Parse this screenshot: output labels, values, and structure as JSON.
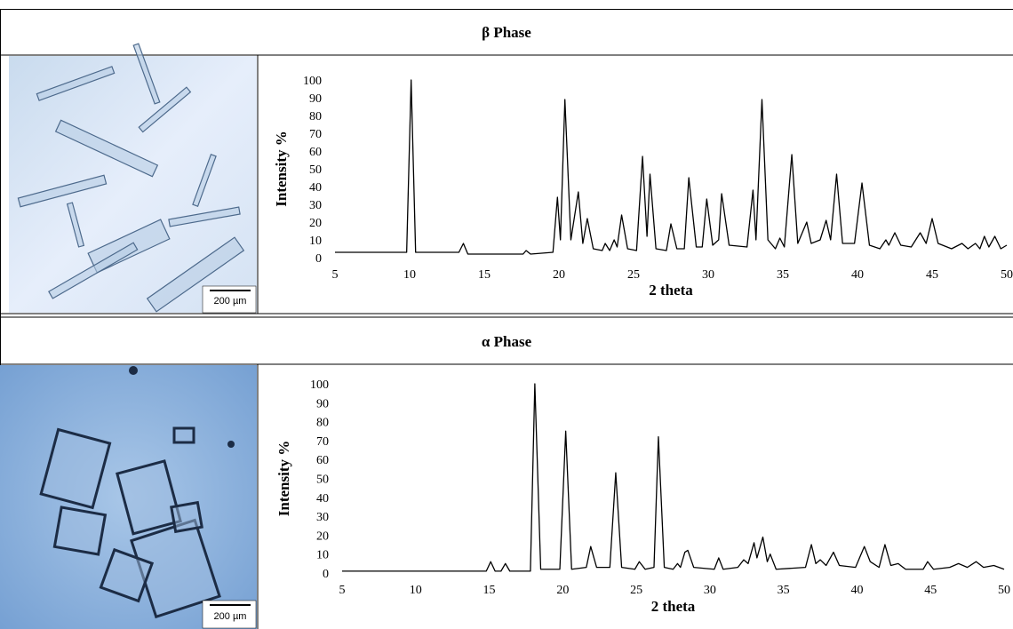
{
  "chart_data": [
    {
      "type": "line",
      "title": "β Phase",
      "xlabel": "2 theta",
      "ylabel": "Intensity %",
      "color": "#000000",
      "xlim": [
        5,
        50
      ],
      "ylim": [
        0,
        100
      ],
      "xticks": [
        5,
        10,
        15,
        20,
        25,
        30,
        35,
        40,
        45,
        50
      ],
      "yticks": [
        0,
        10,
        20,
        30,
        40,
        50,
        60,
        70,
        80,
        90,
        100
      ],
      "x": [
        5,
        9.8,
        10.1,
        10.4,
        13.3,
        13.6,
        13.9,
        17.6,
        17.8,
        18.1,
        19.6,
        19.9,
        20.1,
        20.4,
        20.8,
        21.3,
        21.6,
        21.9,
        22.3,
        22.9,
        23.1,
        23.4,
        23.7,
        23.9,
        24.2,
        24.6,
        25.2,
        25.6,
        25.9,
        26.1,
        26.5,
        27.2,
        27.5,
        27.9,
        28.4,
        28.7,
        29.2,
        29.6,
        29.9,
        30.3,
        30.7,
        30.9,
        31.4,
        32.6,
        33.0,
        33.2,
        33.6,
        34.0,
        34.5,
        34.8,
        35.1,
        35.6,
        36.0,
        36.6,
        36.9,
        37.5,
        37.9,
        38.2,
        38.6,
        39.0,
        39.8,
        40.3,
        40.8,
        41.5,
        41.9,
        42.1,
        42.5,
        42.9,
        43.6,
        44.2,
        44.6,
        45.0,
        45.4,
        46.3,
        47.0,
        47.4,
        47.9,
        48.2,
        48.5,
        48.8,
        49.2,
        49.6,
        50
      ],
      "values": [
        3,
        3,
        100,
        3,
        3,
        8,
        2,
        2,
        4,
        2,
        3,
        34,
        10,
        89,
        10,
        37,
        8,
        22,
        5,
        4,
        8,
        4,
        10,
        6,
        24,
        5,
        4,
        57,
        12,
        47,
        5,
        4,
        19,
        5,
        5,
        45,
        6,
        6,
        33,
        7,
        10,
        36,
        7,
        6,
        38,
        10,
        89,
        10,
        5,
        11,
        6,
        58,
        8,
        20,
        8,
        10,
        21,
        10,
        47,
        8,
        8,
        42,
        7,
        5,
        10,
        7,
        14,
        7,
        6,
        14,
        8,
        22,
        8,
        5,
        8,
        5,
        8,
        5,
        12,
        6,
        12,
        5,
        7
      ]
    },
    {
      "type": "line",
      "title": "α Phase",
      "xlabel": "2 theta",
      "ylabel": "Intensity %",
      "color": "#000000",
      "xlim": [
        5,
        50
      ],
      "ylim": [
        0,
        100
      ],
      "xticks": [
        5,
        10,
        15,
        20,
        25,
        30,
        35,
        40,
        45,
        50
      ],
      "yticks": [
        0,
        10,
        20,
        30,
        40,
        50,
        60,
        70,
        80,
        90,
        100
      ],
      "x": [
        5,
        14.8,
        15.1,
        15.4,
        15.8,
        16.1,
        16.4,
        17.8,
        18.1,
        18.5,
        19.8,
        20.2,
        20.6,
        21.6,
        21.9,
        22.3,
        23.2,
        23.6,
        24.0,
        24.9,
        25.2,
        25.6,
        26.2,
        26.5,
        26.9,
        27.5,
        27.8,
        28.0,
        28.3,
        28.5,
        28.9,
        30.3,
        30.6,
        30.9,
        31.9,
        32.3,
        32.6,
        33.0,
        33.2,
        33.6,
        33.9,
        34.1,
        34.5,
        36.5,
        36.9,
        37.2,
        37.5,
        37.9,
        38.4,
        38.8,
        39.9,
        40.5,
        40.9,
        41.5,
        41.9,
        42.3,
        42.8,
        43.3,
        44.5,
        44.8,
        45.2,
        46.3,
        46.9,
        47.5,
        48.1,
        48.6,
        49.3,
        50
      ],
      "values": [
        1,
        1,
        6,
        1,
        1,
        5,
        1,
        1,
        100,
        2,
        2,
        75,
        2,
        3,
        14,
        3,
        3,
        53,
        3,
        2,
        6,
        2,
        3,
        72,
        3,
        2,
        5,
        3,
        11,
        12,
        3,
        2,
        8,
        2,
        3,
        7,
        5,
        16,
        8,
        19,
        6,
        10,
        2,
        3,
        15,
        5,
        7,
        4,
        11,
        4,
        3,
        14,
        6,
        3,
        15,
        4,
        5,
        2,
        2,
        6,
        2,
        3,
        5,
        3,
        6,
        3,
        4,
        2
      ]
    }
  ],
  "images": [
    {
      "scale_bar": "200 µm"
    },
    {
      "scale_bar": "200 µm"
    }
  ]
}
